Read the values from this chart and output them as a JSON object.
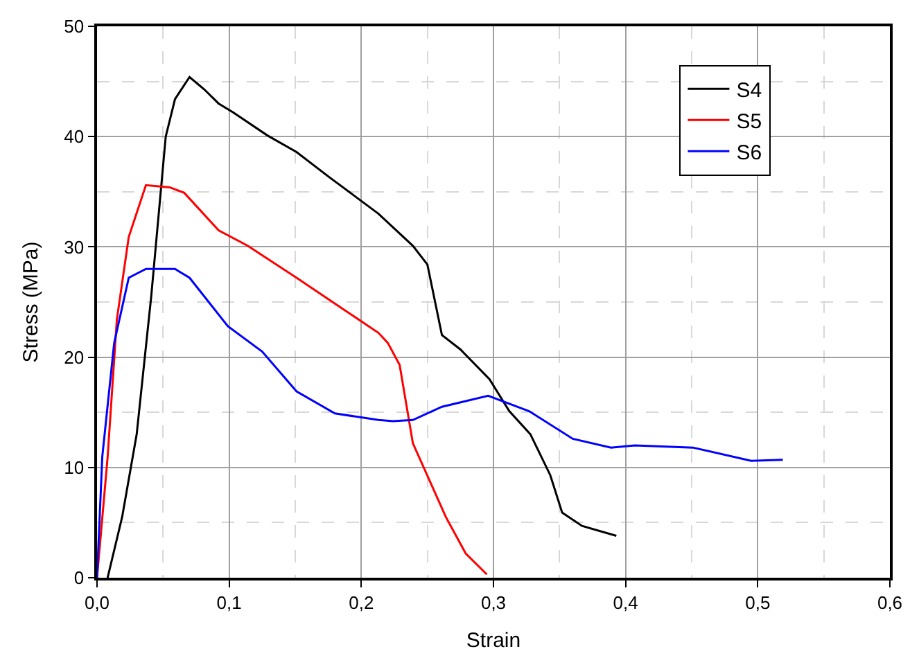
{
  "chart_data": {
    "type": "line",
    "xlabel": "Strain",
    "ylabel": "Stress (MPa)",
    "xlim": [
      0,
      0.6
    ],
    "ylim": [
      0,
      50
    ],
    "xticks": [
      {
        "value": 0,
        "label": "0,0"
      },
      {
        "value": 0.1,
        "label": "0,1"
      },
      {
        "value": 0.2,
        "label": "0,2"
      },
      {
        "value": 0.3,
        "label": "0,3"
      },
      {
        "value": 0.4,
        "label": "0,4"
      },
      {
        "value": 0.5,
        "label": "0,5"
      },
      {
        "value": 0.6,
        "label": "0,6"
      }
    ],
    "yticks": [
      0,
      10,
      20,
      30,
      40,
      50
    ],
    "grid": true,
    "legend": "top right",
    "marker": "none",
    "line_style": "solid",
    "series": [
      {
        "name": "S4",
        "color": "#000000",
        "x": [
          0.008,
          0.019,
          0.03,
          0.041,
          0.052,
          0.059,
          0.07,
          0.081,
          0.092,
          0.103,
          0.129,
          0.151,
          0.176,
          0.213,
          0.239,
          0.25,
          0.261,
          0.275,
          0.297,
          0.312,
          0.328,
          0.343,
          0.352,
          0.367,
          0.393
        ],
        "values": [
          0,
          5.5,
          13,
          25.5,
          40,
          43.4,
          45.4,
          44.3,
          43,
          42.2,
          40.1,
          38.6,
          36.3,
          33,
          30.1,
          28.4,
          22,
          20.7,
          18,
          15.1,
          13,
          9.3,
          5.9,
          4.7,
          3.8
        ]
      },
      {
        "name": "S5",
        "color": "#ff0000",
        "x": [
          0,
          0.008,
          0.015,
          0.024,
          0.037,
          0.055,
          0.066,
          0.092,
          0.114,
          0.151,
          0.187,
          0.213,
          0.22,
          0.229,
          0.239,
          0.264,
          0.279,
          0.295
        ],
        "values": [
          0,
          10.9,
          23.4,
          30.9,
          35.6,
          35.4,
          34.9,
          31.5,
          30.1,
          27.2,
          24.3,
          22.2,
          21.3,
          19.3,
          12.2,
          5.5,
          2.2,
          0.3
        ]
      },
      {
        "name": "S6",
        "color": "#0000ff",
        "x": [
          0,
          0.004,
          0.013,
          0.024,
          0.037,
          0.059,
          0.07,
          0.099,
          0.125,
          0.151,
          0.18,
          0.213,
          0.224,
          0.239,
          0.261,
          0.296,
          0.327,
          0.36,
          0.389,
          0.407,
          0.451,
          0.495,
          0.519
        ],
        "values": [
          0,
          11,
          21.3,
          27.2,
          28,
          28,
          27.2,
          22.8,
          20.5,
          16.9,
          14.9,
          14.3,
          14.2,
          14.3,
          15.5,
          16.5,
          15.1,
          12.6,
          11.8,
          12,
          11.8,
          10.6,
          10.7
        ]
      }
    ]
  }
}
